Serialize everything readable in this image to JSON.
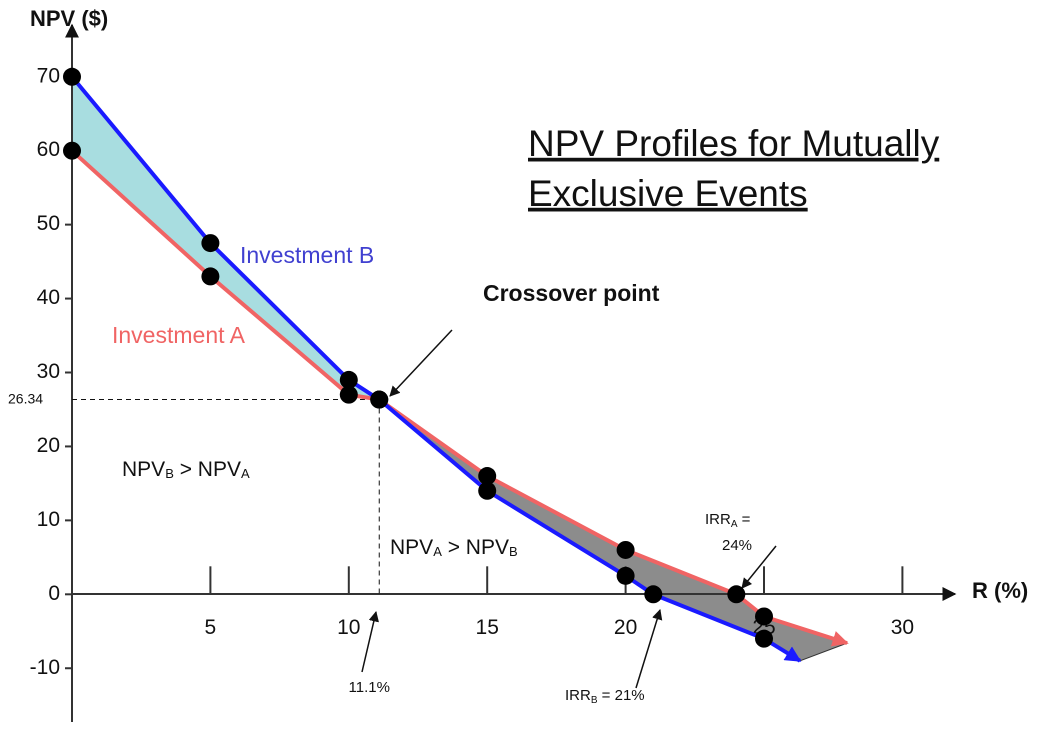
{
  "chart_data": {
    "type": "line",
    "title": [
      "NPV  Profiles for Mutually",
      "Exclusive  Events"
    ],
    "ylabel": "NPV ($)",
    "xlabel": "R (%)",
    "xlim": [
      0,
      31.9
    ],
    "ylim": [
      -17,
      77
    ],
    "xticks": [
      5,
      10,
      15,
      20,
      25,
      30
    ],
    "yticks": [
      -10,
      0,
      10,
      20,
      30,
      40,
      50,
      60,
      70
    ],
    "grid": false,
    "series": [
      {
        "name": "Investment A",
        "color": "#f06464",
        "x": [
          0,
          5,
          10,
          11.1,
          15,
          20,
          24,
          25,
          28
        ],
        "values": [
          60,
          43,
          27,
          26.34,
          16,
          6,
          0,
          -3,
          -6.6
        ]
      },
      {
        "name": "Investment B",
        "color": "#1a1aff",
        "x": [
          0,
          5,
          10,
          11.1,
          15,
          20,
          21,
          25,
          26.3
        ],
        "values": [
          70,
          47.5,
          29,
          26.34,
          14,
          2.5,
          0,
          -6,
          -9
        ]
      }
    ],
    "crossover_label": "Crossover point",
    "crossover_x": {
      "value": 11.1,
      "label": "11.1%"
    },
    "crossover_y": 26.34,
    "region_b": [
      "NPV",
      "B",
      " > NPV",
      "A"
    ],
    "region_a": [
      "NPV",
      "A",
      " > NPV",
      "B"
    ],
    "irr_a": [
      "IRR",
      "A",
      " =",
      "24%"
    ],
    "irr_b": [
      "IRR",
      "B",
      " = 21%"
    ]
  }
}
